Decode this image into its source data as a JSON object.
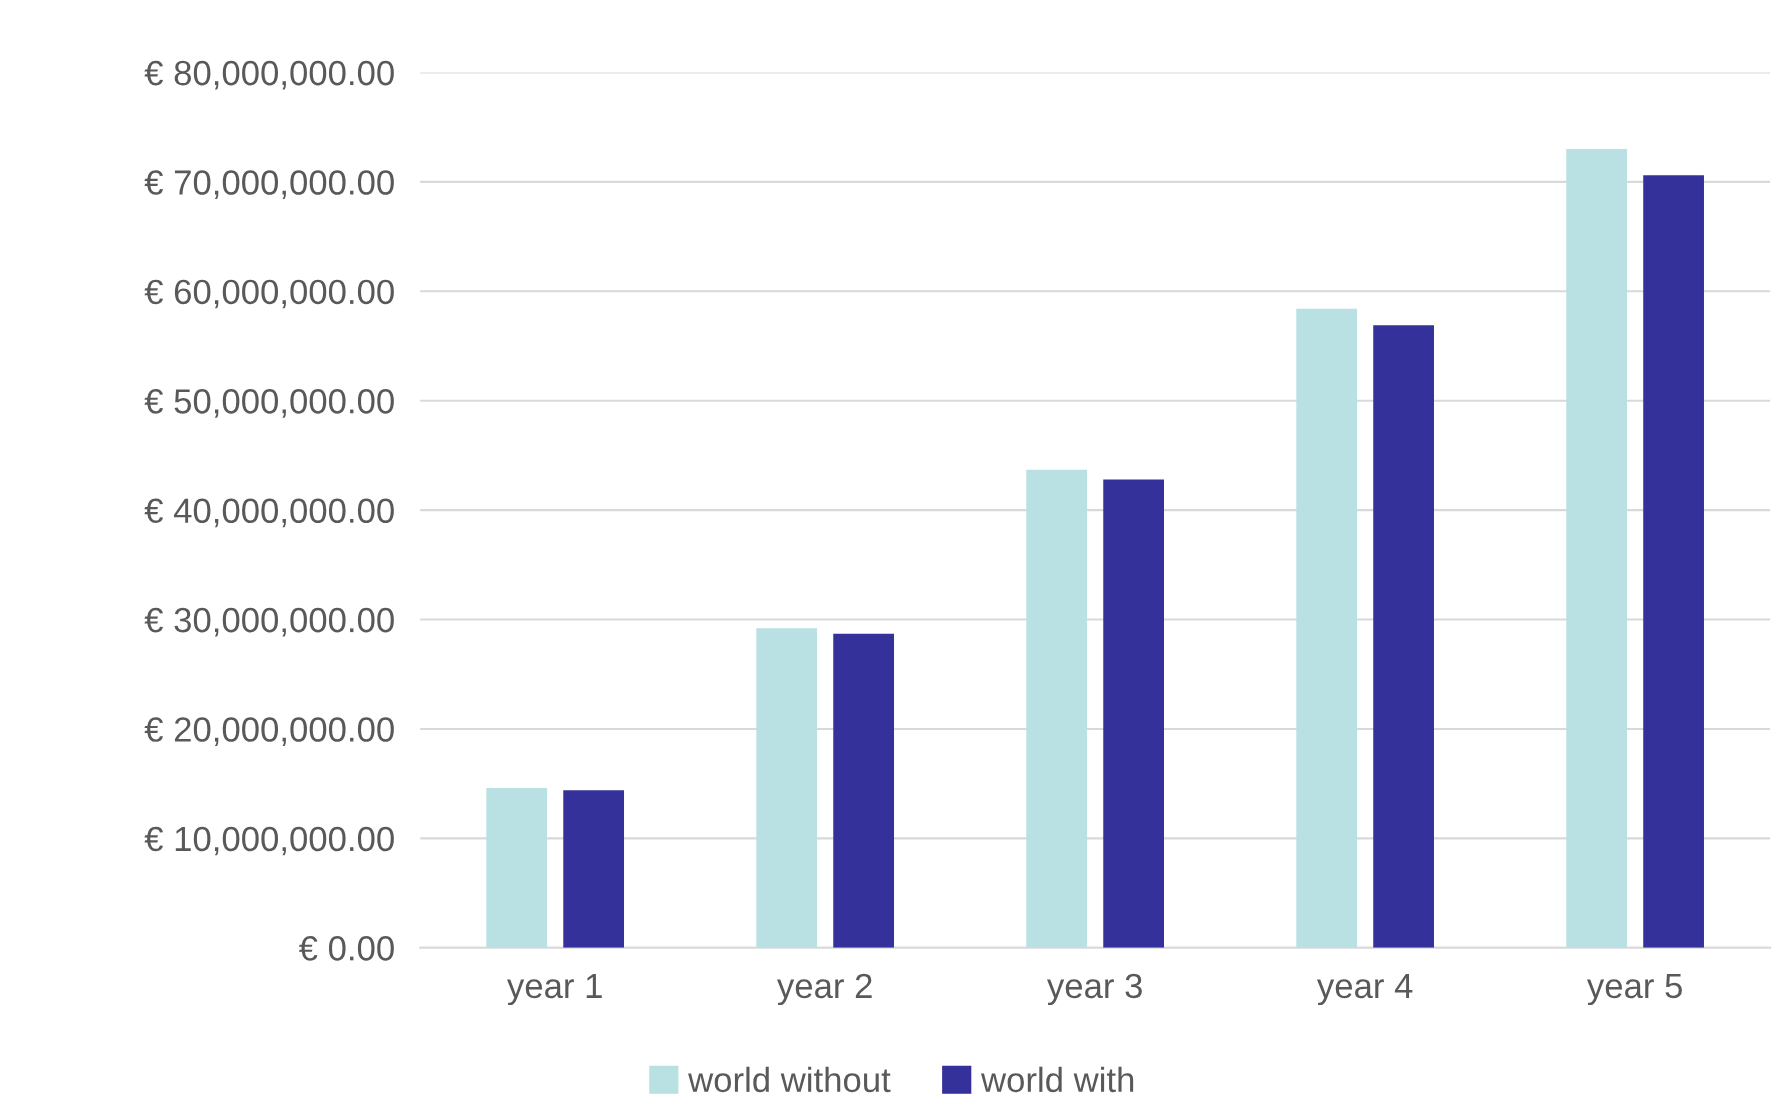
{
  "chart_data": {
    "type": "bar",
    "categories": [
      "year 1",
      "year 2",
      "year 3",
      "year 4",
      "year 5"
    ],
    "series": [
      {
        "name": "world without",
        "color": "#b9e0e3",
        "values": [
          14600000,
          29200000,
          43700000,
          58400000,
          73000000
        ]
      },
      {
        "name": "world with",
        "color": "#34329a",
        "values": [
          14400000,
          28700000,
          42800000,
          56900000,
          70600000
        ]
      }
    ],
    "ylim": [
      0,
      80000000
    ],
    "yticks": [
      {
        "value": 0,
        "label": "€ 0.00"
      },
      {
        "value": 10000000,
        "label": "€ 10,000,000.00"
      },
      {
        "value": 20000000,
        "label": "€ 20,000,000.00"
      },
      {
        "value": 30000000,
        "label": "€ 30,000,000.00"
      },
      {
        "value": 40000000,
        "label": "€ 40,000,000.00"
      },
      {
        "value": 50000000,
        "label": "€ 50,000,000.00"
      },
      {
        "value": 60000000,
        "label": "€ 60,000,000.00"
      },
      {
        "value": 70000000,
        "label": "€ 70,000,000.00"
      },
      {
        "value": 80000000,
        "label": "€ 80,000,000.00"
      }
    ],
    "grid": "y",
    "legend": "bottom"
  }
}
